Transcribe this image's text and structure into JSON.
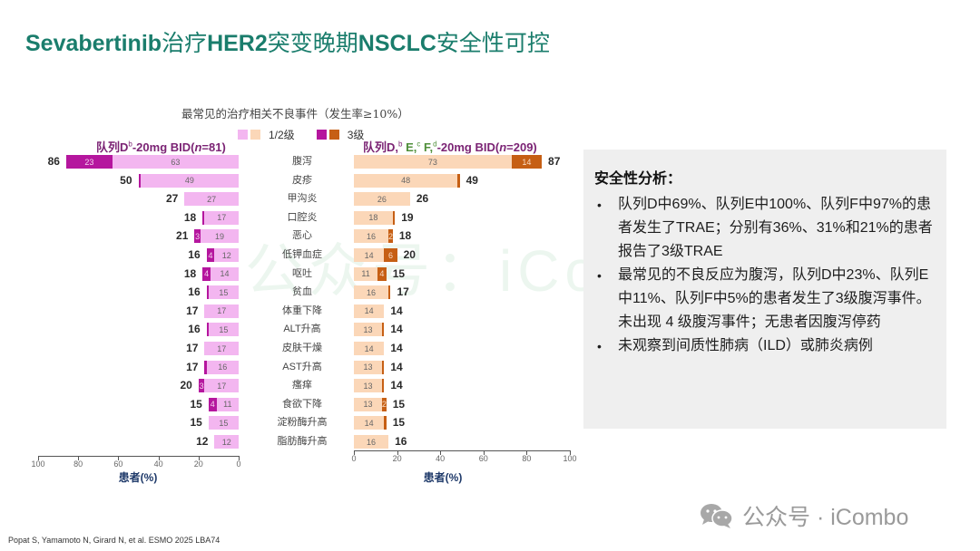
{
  "title": {
    "latin1": "Sevabertinib",
    "cn1": "治疗",
    "latin2": "HER2",
    "cn2": "突变晚期",
    "latin3": "NSCLC",
    "cn3": "安全性可控"
  },
  "chart_header": "最常见的治疗相关不良事件（发生率≥10%）",
  "legend": {
    "grade12_label": "1/2级",
    "grade3_label": "3级",
    "colors": {
      "left_grade12": "#f3b6f0",
      "right_grade12": "#fbd7b8",
      "left_grade3": "#b5169e",
      "right_grade3": "#c65f14"
    }
  },
  "cohort_left": {
    "prefix": "队列D",
    "sup": "b",
    "suffix": "-20mg BID(",
    "n_italic": "n",
    "n_value": "=81)"
  },
  "cohort_right": {
    "prefix": "队列D,",
    "sup_b": "b",
    "e": " E,",
    "sup_c": "c",
    "f": " F,",
    "sup_d": "d",
    "suffix": "-20mg BID(",
    "n_italic": "n",
    "n_value": "=209)"
  },
  "axes": {
    "left_ticks": [
      "100",
      "80",
      "60",
      "40",
      "20",
      "0"
    ],
    "right_ticks": [
      "0",
      "20",
      "40",
      "60",
      "80",
      "100"
    ],
    "xlabel": "患者(%)"
  },
  "chart_data": {
    "type": "bar",
    "orientation": "horizontal-butterfly",
    "title": "最常见的治疗相关不良事件（发生率≥10%）",
    "xlabel": "患者(%)",
    "xlim": [
      0,
      100
    ],
    "categories": [
      "腹泻",
      "皮疹",
      "甲沟炎",
      "口腔炎",
      "恶心",
      "低钾血症",
      "呕吐",
      "贫血",
      "体重下降",
      "ALT升高",
      "皮肤干燥",
      "AST升高",
      "瘙痒",
      "食欲下降",
      "淀粉酶升高",
      "脂肪酶升高"
    ],
    "series": [
      {
        "name": "队列D-20mg BID(n=81) 1/2级",
        "values": [
          63,
          49,
          27,
          17,
          19,
          12,
          14,
          15,
          17,
          15,
          17,
          16,
          17,
          11,
          15,
          12
        ]
      },
      {
        "name": "队列D-20mg BID(n=81) 3级",
        "values": [
          23,
          1,
          0,
          1,
          3,
          4,
          4,
          1,
          0,
          1,
          0,
          1,
          3,
          4,
          0,
          0
        ]
      },
      {
        "name": "队列D-20mg BID(n=81) 总计",
        "values": [
          86,
          50,
          27,
          18,
          21,
          16,
          18,
          16,
          17,
          16,
          17,
          17,
          20,
          15,
          15,
          12
        ]
      },
      {
        "name": "队列D,E,F-20mg BID(n=209) 1/2级",
        "values": [
          73,
          48,
          26,
          18,
          16,
          14,
          11,
          16,
          14,
          13,
          14,
          13,
          13,
          13,
          14,
          16
        ]
      },
      {
        "name": "队列D,E,F-20mg BID(n=209) 3级",
        "values": [
          14,
          1,
          0,
          1,
          2,
          6,
          4,
          1,
          0,
          1,
          0,
          1,
          1,
          2,
          1,
          0
        ]
      },
      {
        "name": "队列D,E,F-20mg BID(n=209) 总计",
        "values": [
          87,
          49,
          26,
          19,
          18,
          20,
          15,
          17,
          14,
          14,
          14,
          14,
          14,
          15,
          15,
          16
        ]
      }
    ],
    "left_rows": [
      {
        "g12": "63",
        "g3": "23",
        "total": "86",
        "g12v": 63,
        "g3v": 23
      },
      {
        "g12": "49",
        "g3": "",
        "total": "50",
        "g12v": 49,
        "g3v": 1
      },
      {
        "g12": "27",
        "g3": "",
        "total": "27",
        "g12v": 27,
        "g3v": 0
      },
      {
        "g12": "17",
        "g3": "",
        "total": "18",
        "g12v": 17,
        "g3v": 1
      },
      {
        "g12": "19",
        "g3": "3",
        "total": "21",
        "g12v": 19,
        "g3v": 3
      },
      {
        "g12": "12",
        "g3": "4",
        "total": "16",
        "g12v": 12,
        "g3v": 4
      },
      {
        "g12": "14",
        "g3": "4",
        "total": "18",
        "g12v": 14,
        "g3v": 4
      },
      {
        "g12": "15",
        "g3": "",
        "total": "16",
        "g12v": 15,
        "g3v": 1
      },
      {
        "g12": "17",
        "g3": "",
        "total": "17",
        "g12v": 17,
        "g3v": 0
      },
      {
        "g12": "15",
        "g3": "",
        "total": "16",
        "g12v": 15,
        "g3v": 1
      },
      {
        "g12": "17",
        "g3": "",
        "total": "17",
        "g12v": 17,
        "g3v": 0
      },
      {
        "g12": "16",
        "g3": "",
        "total": "17",
        "g12v": 16,
        "g3v": 1
      },
      {
        "g12": "17",
        "g3": "3",
        "total": "20",
        "g12v": 17,
        "g3v": 3
      },
      {
        "g12": "11",
        "g3": "4",
        "total": "15",
        "g12v": 11,
        "g3v": 4
      },
      {
        "g12": "15",
        "g3": "",
        "total": "15",
        "g12v": 15,
        "g3v": 0
      },
      {
        "g12": "12",
        "g3": "",
        "total": "12",
        "g12v": 12,
        "g3v": 0
      }
    ],
    "right_rows": [
      {
        "g12": "73",
        "g3": "14",
        "total": "87",
        "g12v": 73,
        "g3v": 14
      },
      {
        "g12": "48",
        "g3": "",
        "total": "49",
        "g12v": 48,
        "g3v": 1
      },
      {
        "g12": "26",
        "g3": "",
        "total": "26",
        "g12v": 26,
        "g3v": 0
      },
      {
        "g12": "18",
        "g3": "",
        "total": "19",
        "g12v": 18,
        "g3v": 1
      },
      {
        "g12": "16",
        "g3": "2",
        "total": "18",
        "g12v": 16,
        "g3v": 2
      },
      {
        "g12": "14",
        "g3": "6",
        "total": "20",
        "g12v": 14,
        "g3v": 6
      },
      {
        "g12": "11",
        "g3": "4",
        "total": "15",
        "g12v": 11,
        "g3v": 4
      },
      {
        "g12": "16",
        "g3": "",
        "total": "17",
        "g12v": 16,
        "g3v": 1
      },
      {
        "g12": "14",
        "g3": "",
        "total": "14",
        "g12v": 14,
        "g3v": 0
      },
      {
        "g12": "13",
        "g3": "",
        "total": "14",
        "g12v": 13,
        "g3v": 1
      },
      {
        "g12": "14",
        "g3": "",
        "total": "14",
        "g12v": 14,
        "g3v": 0
      },
      {
        "g12": "13",
        "g3": "",
        "total": "14",
        "g12v": 13,
        "g3v": 1
      },
      {
        "g12": "13",
        "g3": "",
        "total": "14",
        "g12v": 13,
        "g3v": 1
      },
      {
        "g12": "13",
        "g3": "2",
        "total": "15",
        "g12v": 13,
        "g3v": 2
      },
      {
        "g12": "14",
        "g3": "",
        "total": "15",
        "g12v": 14,
        "g3v": 1
      },
      {
        "g12": "16",
        "g3": "",
        "total": "16",
        "g12v": 16,
        "g3v": 0
      }
    ],
    "legend_position": "top"
  },
  "panel": {
    "title": "安全性分析：",
    "bullets": [
      "队列D中69%、队列E中100%、队列F中97%的患者发生了TRAE；分别有36%、31%和21%的患者报告了3级TRAE",
      "最常见的不良反应为腹泻，队列D中23%、队列E中11%、队列F中5%的患者发生了3级腹泻事件。未出现 4 级腹泻事件；无患者因腹泻停药",
      "未观察到间质性肺病（ILD）或肺炎病例"
    ]
  },
  "watermark": "公众号：iCombo",
  "citation": "Popat S, Yamamoto N, Girard N, et al. ESMO 2025 LBA74",
  "brand": {
    "icon": "wechat-icon",
    "text": "公众号 · iCombo"
  }
}
